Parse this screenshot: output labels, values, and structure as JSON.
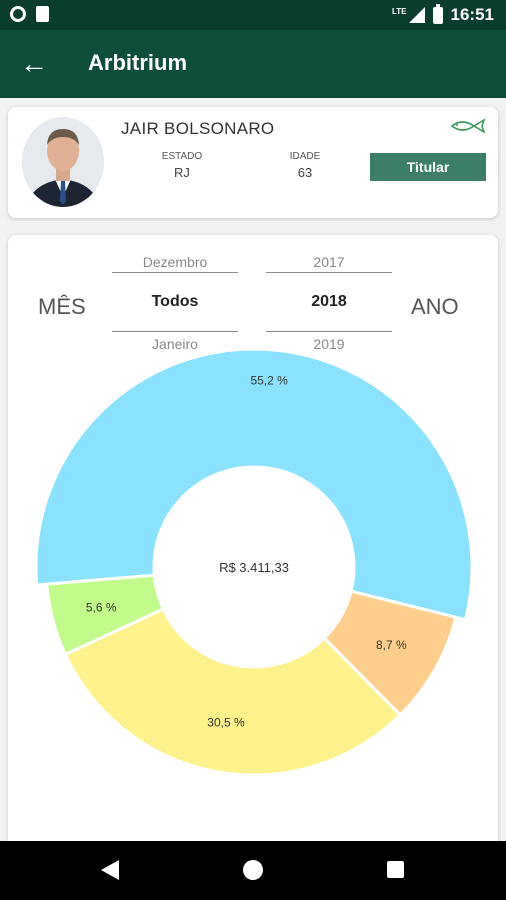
{
  "status_bar": {
    "network": "LTE",
    "time": "16:51"
  },
  "app_bar": {
    "title": "Arbitrium"
  },
  "profile": {
    "name": "JAIR BOLSONARO",
    "estado_label": "ESTADO",
    "estado_value": "RJ",
    "idade_label": "IDADE",
    "idade_value": "63",
    "badge": "Titular"
  },
  "filters": {
    "mes_label": "MÊS",
    "ano_label": "ANO",
    "month_options": [
      "Dezembro",
      "Todos",
      "Janeiro"
    ],
    "month_selected": "Todos",
    "year_options": [
      "2017",
      "2018",
      "2019"
    ],
    "year_selected": "2018"
  },
  "chart_data": {
    "type": "pie",
    "center_label": "R$ 3.411,33",
    "slices": [
      {
        "label": "55,2 %",
        "value": 55.2,
        "color": "#8ae2ff"
      },
      {
        "label": "5,6 %",
        "value": 5.6,
        "color": "#c3fa8c"
      },
      {
        "label": "30,5 %",
        "value": 30.5,
        "color": "#fef28c"
      },
      {
        "label": "8,7 %",
        "value": 8.7,
        "color": "#fece8c"
      }
    ]
  },
  "colors": {
    "primary": "#0e4d3a",
    "status_bar": "#0a3d2d",
    "badge": "#3d7f66"
  }
}
